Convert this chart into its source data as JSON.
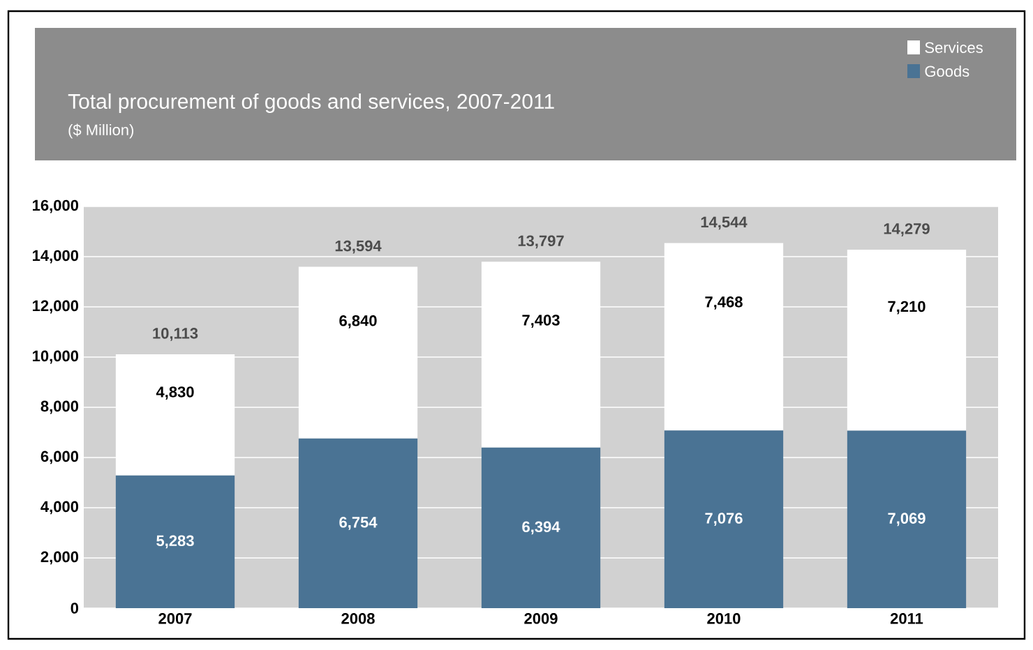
{
  "chart_data": {
    "type": "bar",
    "stacked": true,
    "title": "Total procurement of goods and services, 2007-2011",
    "subtitle": "($ Million)",
    "categories": [
      "2007",
      "2008",
      "2009",
      "2010",
      "2011"
    ],
    "series": [
      {
        "name": "Goods",
        "color": "#4a7394",
        "values": [
          5283,
          6754,
          6394,
          7076,
          7069
        ],
        "value_labels": [
          "5,283",
          "6,754",
          "6,394",
          "7,076",
          "7,069"
        ]
      },
      {
        "name": "Services",
        "color": "#ffffff",
        "values": [
          4830,
          6840,
          7403,
          7468,
          7210
        ],
        "value_labels": [
          "4,830",
          "6,840",
          "7,403",
          "7,468",
          "7,210"
        ]
      }
    ],
    "totals": [
      "10,113",
      "13,594",
      "13,797",
      "14,544",
      "14,279"
    ],
    "ylim": [
      0,
      16000
    ],
    "yticks": [
      0,
      {
        "value": 2000,
        "label": "2,000"
      },
      {
        "value": 4000,
        "label": "4,000"
      },
      {
        "value": 6000,
        "label": "6,000"
      },
      {
        "value": 8000,
        "label": "8,000"
      },
      {
        "value": 10000,
        "label": "10,000"
      },
      {
        "value": 12000,
        "label": "12,000"
      },
      {
        "value": 14000,
        "label": "14,000"
      },
      {
        "value": 16000,
        "label": "16,000"
      }
    ],
    "grid": "y",
    "legend": "top right"
  }
}
